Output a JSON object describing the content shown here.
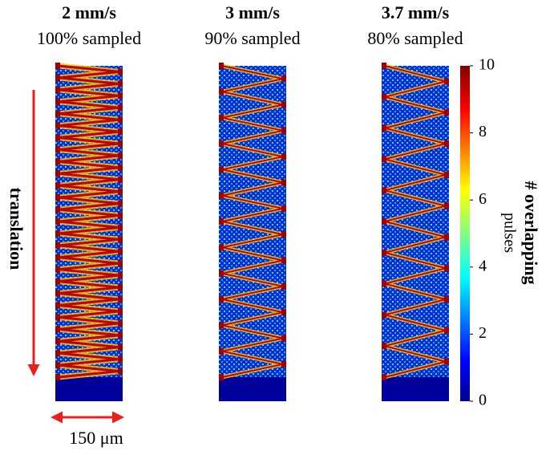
{
  "panels": [
    {
      "speed": "2 mm/s",
      "sampling": "100% sampled"
    },
    {
      "speed": "3 mm/s",
      "sampling": "90% sampled"
    },
    {
      "speed": "3.7 mm/s",
      "sampling": "80% sampled"
    }
  ],
  "colorbar": {
    "label": "# overlapping",
    "sublabel": "pulses",
    "lim": [
      0,
      10
    ],
    "ticks": [
      0,
      2,
      4,
      6,
      8,
      10
    ]
  },
  "annotations": {
    "translation": "translation",
    "scale": "150 μm"
  }
}
